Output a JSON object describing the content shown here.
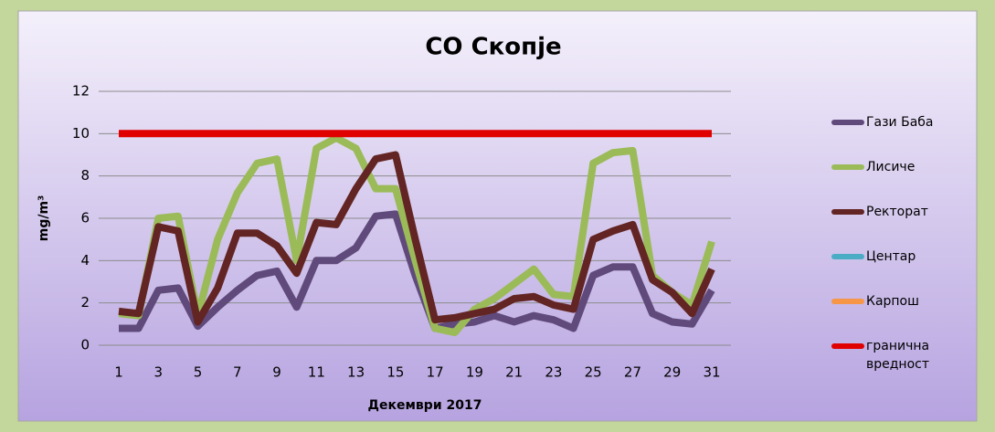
{
  "chart_data": {
    "type": "line",
    "title": "СО Скопје",
    "x_label": "Декември 2017",
    "y_label": "mg/m³",
    "categories": [
      1,
      null,
      3,
      null,
      5,
      null,
      7,
      null,
      9,
      null,
      11,
      null,
      13,
      null,
      15,
      null,
      17,
      null,
      19,
      null,
      21,
      null,
      23,
      null,
      25,
      null,
      27,
      null,
      29,
      null,
      31
    ],
    "ylim": [
      0,
      12
    ],
    "yticks": [
      0,
      2,
      4,
      6,
      8,
      10,
      12
    ],
    "grid": true,
    "legend": "right",
    "series": [
      {
        "name": "Гази Баба",
        "color": "#604a7b",
        "values": [
          0.8,
          0.8,
          2.6,
          2.7,
          0.9,
          1.8,
          2.6,
          3.3,
          3.5,
          1.8,
          4.0,
          4.0,
          4.6,
          6.1,
          6.2,
          3.3,
          0.8,
          1.0,
          1.1,
          1.4,
          1.1,
          1.4,
          1.2,
          0.8,
          3.3,
          3.7,
          3.7,
          1.5,
          1.1,
          1.0,
          2.6
        ]
      },
      {
        "name": "Лисиче",
        "color": "#9bbb59",
        "values": [
          1.5,
          1.4,
          6.0,
          6.1,
          1.4,
          5.0,
          7.2,
          8.6,
          8.8,
          4.0,
          9.3,
          9.8,
          9.3,
          7.4,
          7.4,
          4.0,
          0.8,
          0.6,
          1.7,
          2.2,
          2.9,
          3.6,
          2.4,
          2.3,
          8.6,
          9.1,
          9.2,
          3.3,
          2.5,
          1.9,
          4.9
        ]
      },
      {
        "name": "Ректорат",
        "color": "#632523",
        "values": [
          1.6,
          1.5,
          5.6,
          5.4,
          1.1,
          2.7,
          5.3,
          5.3,
          4.7,
          3.4,
          5.8,
          5.7,
          7.4,
          8.8,
          9.0,
          5.0,
          1.2,
          1.3,
          1.5,
          1.7,
          2.2,
          2.3,
          1.9,
          1.7,
          5.0,
          5.4,
          5.7,
          3.1,
          2.5,
          1.5,
          3.6
        ]
      },
      {
        "name": "Центар",
        "color": "#4bacc6",
        "values": [
          null,
          null,
          null,
          null,
          null,
          null,
          null,
          null,
          null,
          null,
          null,
          null,
          null,
          null,
          null,
          null,
          null,
          null,
          null,
          null,
          null,
          null,
          null,
          null,
          null,
          null,
          null,
          null,
          null,
          null,
          null
        ]
      },
      {
        "name": "Карпош",
        "color": "#f79646",
        "values": [
          null,
          null,
          null,
          null,
          null,
          null,
          null,
          null,
          null,
          null,
          null,
          null,
          null,
          null,
          null,
          null,
          null,
          null,
          null,
          null,
          null,
          null,
          null,
          null,
          null,
          null,
          null,
          null,
          null,
          null,
          null
        ]
      },
      {
        "name": "гранична вредност",
        "color": "#e00000",
        "values": [
          10,
          10,
          10,
          10,
          10,
          10,
          10,
          10,
          10,
          10,
          10,
          10,
          10,
          10,
          10,
          10,
          10,
          10,
          10,
          10,
          10,
          10,
          10,
          10,
          10,
          10,
          10,
          10,
          10,
          10,
          10
        ]
      }
    ]
  }
}
